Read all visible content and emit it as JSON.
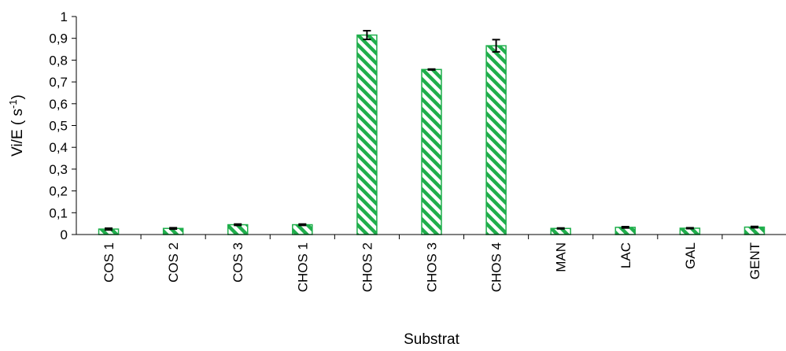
{
  "chart_data": {
    "type": "bar",
    "categories": [
      "COS 1",
      "COS 2",
      "COS 3",
      "CHOS 1",
      "CHOS 2",
      "CHOS 3",
      "CHOS 4",
      "MAN",
      "LAC",
      "GAL",
      "GENT"
    ],
    "values": [
      0.025,
      0.028,
      0.045,
      0.045,
      0.915,
      0.757,
      0.866,
      0.028,
      0.033,
      0.029,
      0.034
    ],
    "errors": [
      0.004,
      0.003,
      0.003,
      0.003,
      0.02,
      0.002,
      0.028,
      0.002,
      0.003,
      0.002,
      0.003
    ],
    "title": "",
    "xlabel": "Substrat",
    "ylabel": "Vi/E",
    "ylabel_unit": "( s",
    "ylabel_exp": "-1",
    "ylabel_close": ")",
    "ylim": [
      0,
      1
    ],
    "yticks": [
      0,
      0.1,
      0.2,
      0.3,
      0.4,
      0.5,
      0.6,
      0.7,
      0.8,
      0.9,
      1
    ],
    "ytick_labels": [
      "0",
      "0,1",
      "0,2",
      "0,3",
      "0,4",
      "0,5",
      "0,6",
      "0,7",
      "0,8",
      "0,9",
      "1"
    ],
    "grid": false,
    "legend": "none",
    "bar_color": "#1fae4b",
    "bar_pattern": "diagonal-hatch",
    "error_color": "#000000"
  }
}
